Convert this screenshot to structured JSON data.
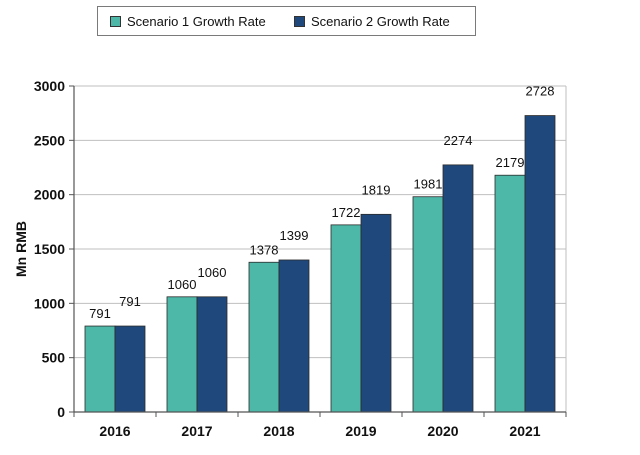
{
  "legend": {
    "items": [
      {
        "label": "Scenario 1 Growth Rate",
        "color": "#4db8a8"
      },
      {
        "label": "Scenario 2 Growth Rate",
        "color": "#1f497d"
      }
    ]
  },
  "chart_data": {
    "type": "bar",
    "categories": [
      "2016",
      "2017",
      "2018",
      "2019",
      "2020",
      "2021"
    ],
    "series": [
      {
        "name": "Scenario 1 Growth Rate",
        "color": "#4db8a8",
        "values": [
          791,
          1060,
          1378,
          1722,
          1981,
          2179
        ]
      },
      {
        "name": "Scenario 2 Growth Rate",
        "color": "#1f497d",
        "values": [
          791,
          1060,
          1399,
          1819,
          2274,
          2728
        ]
      }
    ],
    "ylabel": "Mn RMB",
    "xlabel": "",
    "ylim": [
      0,
      3000
    ],
    "yticks": [
      0,
      500,
      1000,
      1500,
      2000,
      2500,
      3000
    ],
    "grid": true,
    "legend_position": "top"
  }
}
